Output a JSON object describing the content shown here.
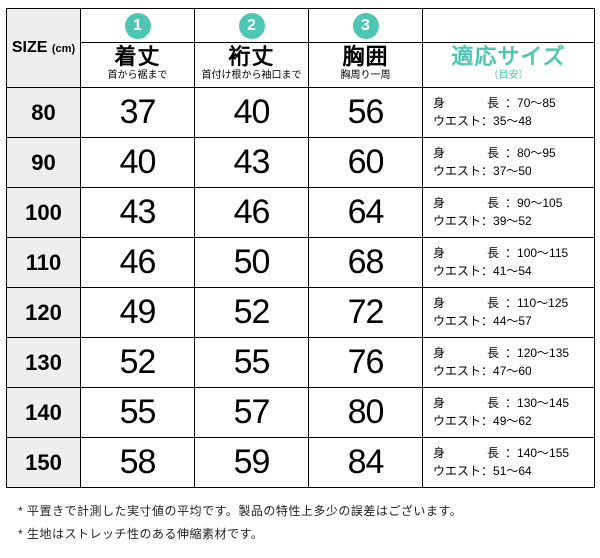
{
  "colors": {
    "badge": "#4fc6b4",
    "fit_header": "#4fc6b4",
    "size_header_bg": "#eeeeee",
    "border": "#000000"
  },
  "columns": {
    "size": {
      "main": "SIZE",
      "sub": "(cm)"
    },
    "c1": {
      "badge": "1",
      "main": "着丈",
      "sub": "首から裾まで"
    },
    "c2": {
      "badge": "2",
      "main": "裄丈",
      "sub": "首付け根から袖口まで"
    },
    "c3": {
      "badge": "3",
      "main": "胸囲",
      "sub": "胸周り一周"
    },
    "fit": {
      "main": "適応サイズ",
      "sub": "（目安）"
    }
  },
  "fit_labels": {
    "height": "身　　長",
    "waist": "ウエスト"
  },
  "rows": [
    {
      "size": "80",
      "c1": "37",
      "c2": "40",
      "c3": "56",
      "height": "70〜85",
      "waist": "35〜48"
    },
    {
      "size": "90",
      "c1": "40",
      "c2": "43",
      "c3": "60",
      "height": "80〜95",
      "waist": "37〜50"
    },
    {
      "size": "100",
      "c1": "43",
      "c2": "46",
      "c3": "64",
      "height": "90〜105",
      "waist": "39〜52"
    },
    {
      "size": "110",
      "c1": "46",
      "c2": "50",
      "c3": "68",
      "height": "100〜115",
      "waist": "41〜54"
    },
    {
      "size": "120",
      "c1": "49",
      "c2": "52",
      "c3": "72",
      "height": "110〜125",
      "waist": "44〜57"
    },
    {
      "size": "130",
      "c1": "52",
      "c2": "55",
      "c3": "76",
      "height": "120〜135",
      "waist": "47〜60"
    },
    {
      "size": "140",
      "c1": "55",
      "c2": "57",
      "c3": "80",
      "height": "130〜145",
      "waist": "49〜62"
    },
    {
      "size": "150",
      "c1": "58",
      "c2": "59",
      "c3": "84",
      "height": "140〜155",
      "waist": "51〜64"
    }
  ],
  "notes": [
    "平置きで計測した実寸値の平均です。製品の特性上多少の誤差はございます。",
    "生地はストレッチ性のある伸縮素材です。"
  ]
}
